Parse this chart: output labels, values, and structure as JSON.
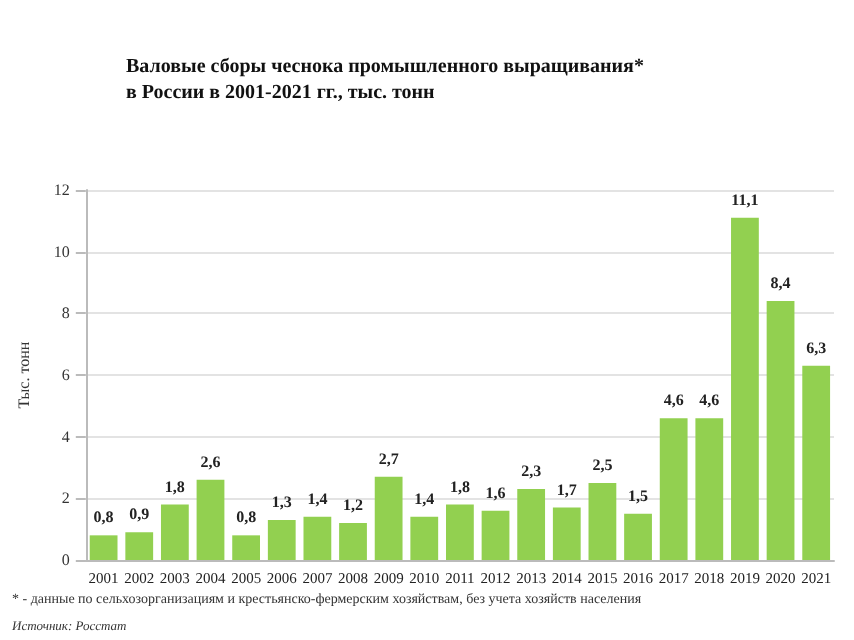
{
  "chart_data": {
    "type": "bar",
    "title": "Валовые сборы чеснока промышленного выращивания*\nв России в 2001-2021 гг., тыс. тонн",
    "ylabel": "Тыс. тонн",
    "categories": [
      "2001",
      "2002",
      "2003",
      "2004",
      "2005",
      "2006",
      "2007",
      "2008",
      "2009",
      "2010",
      "2011",
      "2012",
      "2013",
      "2014",
      "2015",
      "2016",
      "2017",
      "2018",
      "2019",
      "2020",
      "2021"
    ],
    "values": [
      0.8,
      0.9,
      1.8,
      2.6,
      0.8,
      1.3,
      1.4,
      1.2,
      2.7,
      1.4,
      1.8,
      1.6,
      2.3,
      1.7,
      2.5,
      1.5,
      4.6,
      4.6,
      11.1,
      8.4,
      6.3
    ],
    "value_labels": [
      "0,8",
      "0,9",
      "1,8",
      "2,6",
      "0,8",
      "1,3",
      "1,4",
      "1,2",
      "2,7",
      "1,4",
      "1,8",
      "1,6",
      "2,3",
      "1,7",
      "2,5",
      "1,5",
      "4,6",
      "4,6",
      "11,1",
      "8,4",
      "6,3"
    ],
    "color": "#92d050",
    "ylim": [
      0,
      12
    ],
    "yticks": [
      0,
      2,
      4,
      6,
      8,
      10,
      12
    ],
    "grid": "y",
    "annotations": [
      "* - данные по сельхозорганизациям и крестьянско-фермерским хозяйствам, без учета хозяйств населения",
      "Источник: Росстат"
    ]
  }
}
